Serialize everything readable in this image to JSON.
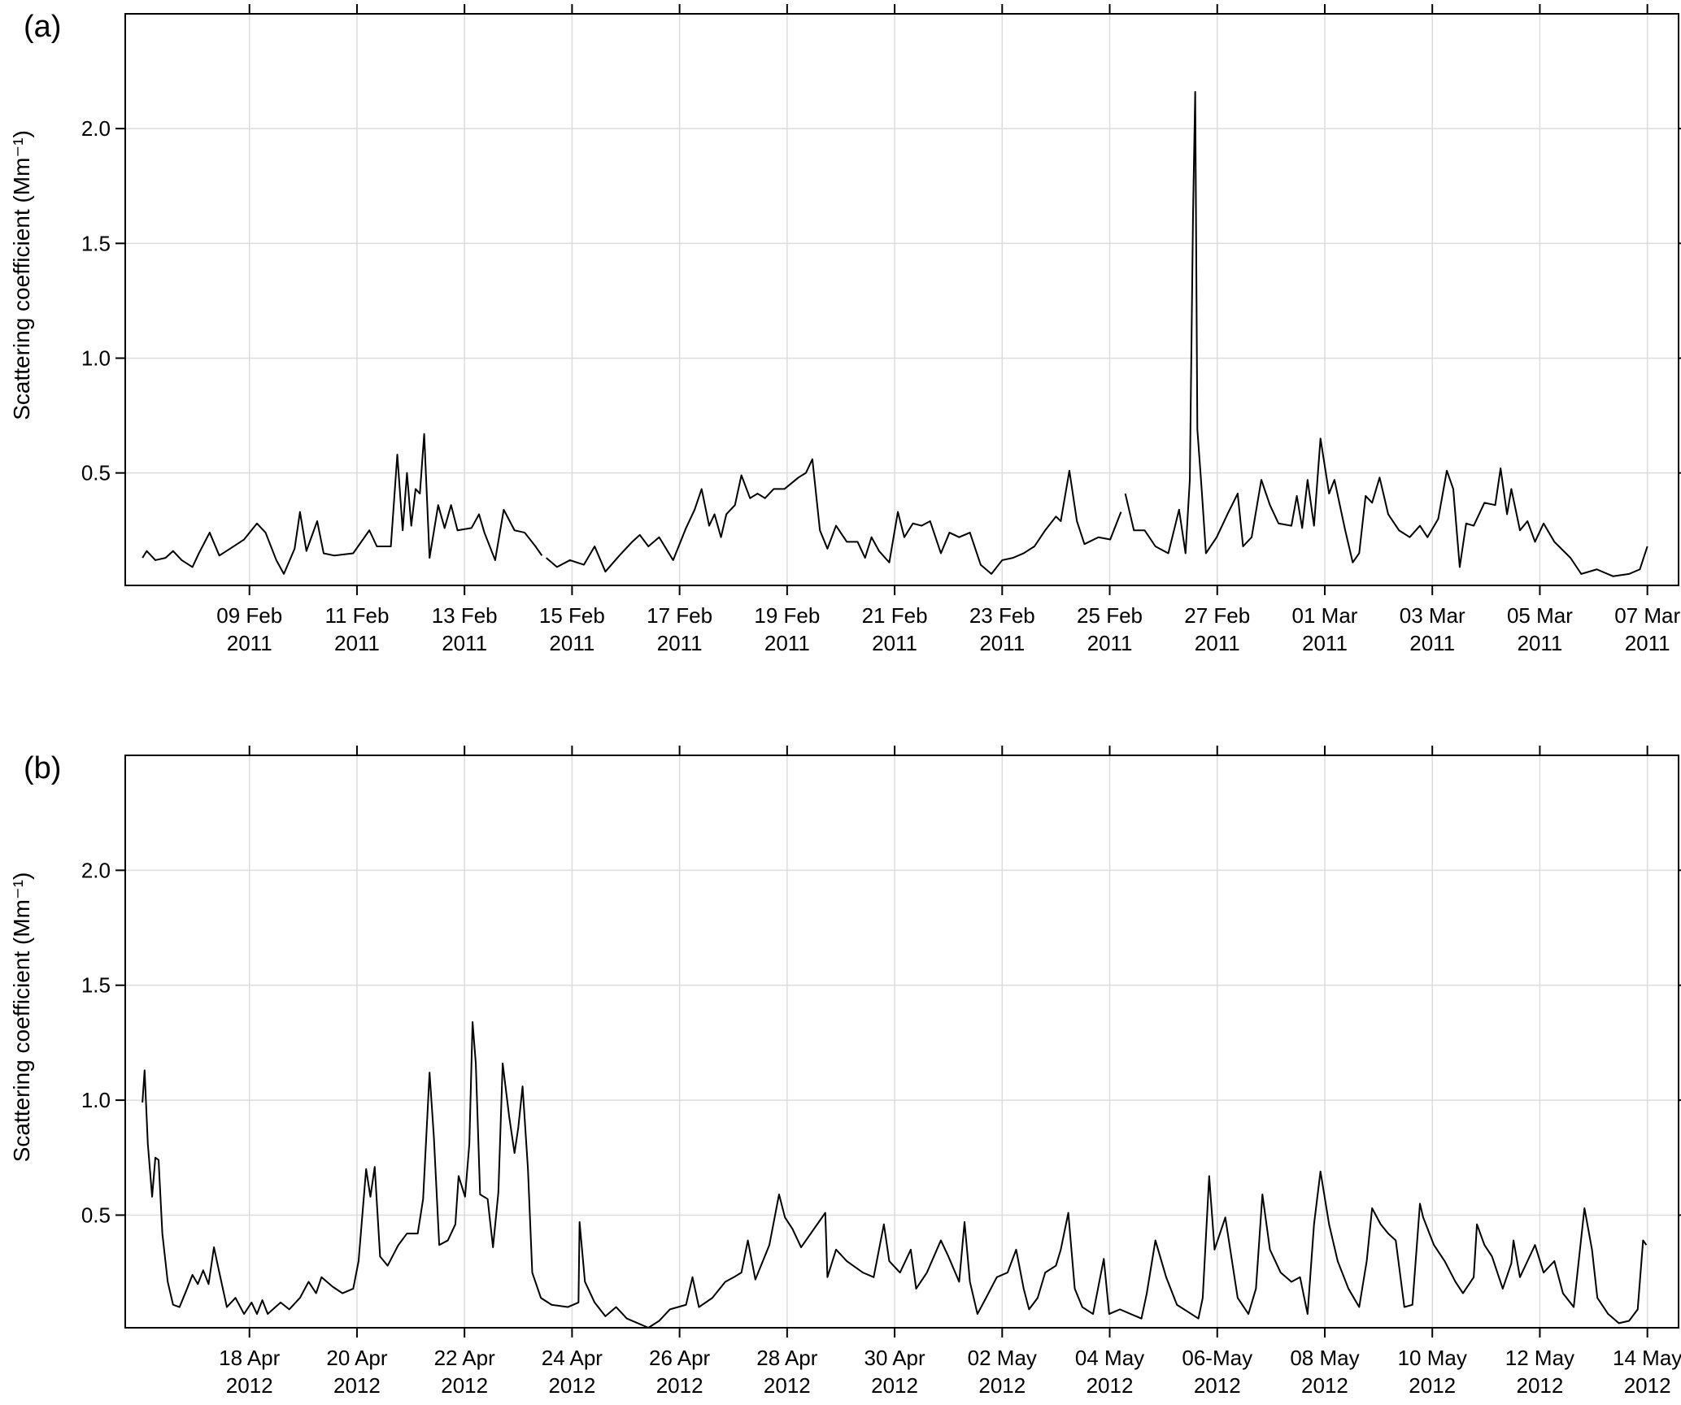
{
  "chart_data": [
    {
      "type": "line",
      "panel_label": "(a)",
      "ylabel": "Scattering coefficient (Mm⁻¹)",
      "xlim": [
        6.69,
        35.58
      ],
      "ylim": [
        0.01,
        2.5
      ],
      "grid": true,
      "xticks": [
        {
          "value": 9,
          "label": "09 Feb\n2011"
        },
        {
          "value": 11,
          "label": "11 Feb\n2011"
        },
        {
          "value": 13,
          "label": "13 Feb\n2011"
        },
        {
          "value": 15,
          "label": "15 Feb\n2011"
        },
        {
          "value": 17,
          "label": "17 Feb\n2011"
        },
        {
          "value": 19,
          "label": "19 Feb\n2011"
        },
        {
          "value": 21,
          "label": "21 Feb\n2011"
        },
        {
          "value": 23,
          "label": "23 Feb\n2011"
        },
        {
          "value": 25,
          "label": "25 Feb\n2011"
        },
        {
          "value": 27,
          "label": "27 Feb\n2011"
        },
        {
          "value": 29,
          "label": "01 Mar\n2011"
        },
        {
          "value": 31,
          "label": "03 Mar\n2011"
        },
        {
          "value": 33,
          "label": "05 Mar\n2011"
        },
        {
          "value": 35,
          "label": "07 Mar\n2011"
        }
      ],
      "yticks": [
        0.5,
        {
          "value": 1,
          "label": "1.0"
        },
        1.5,
        {
          "value": 2,
          "label": "2.0"
        }
      ],
      "series": [
        {
          "color": "#000000",
          "x": [
            7.01,
            7.09,
            7.25,
            7.44,
            7.58,
            7.74,
            7.94,
            8.06,
            8.26,
            8.44,
            8.64,
            8.9,
            9.14,
            9.3,
            9.5,
            9.64,
            9.84,
            9.94,
            10.06,
            10.26,
            10.38,
            10.58,
            10.93,
            11.23,
            11.37,
            11.63,
            11.75,
            11.85,
            11.93,
            12.01,
            12.09,
            12.17,
            12.25,
            12.35,
            12.51,
            12.63,
            12.75,
            12.87,
            13.13,
            13.27,
            13.37,
            13.57,
            13.73,
            13.93,
            14.12,
            14.32,
            14.44,
            14.48,
            14.52,
            14.72,
            14.96,
            15.22,
            15.42,
            15.62,
            15.88,
            16.12,
            16.26,
            16.42,
            16.62,
            16.88,
            17.12,
            17.28,
            17.41,
            17.55,
            17.65,
            17.77,
            17.87,
            18.03,
            18.15,
            18.31,
            18.45,
            18.59,
            18.75,
            18.95,
            19.21,
            19.35,
            19.47,
            19.61,
            19.75,
            19.91,
            20.11,
            20.31,
            20.45,
            20.57,
            20.71,
            20.9,
            21.06,
            21.18,
            21.34,
            21.5,
            21.66,
            21.86,
            22.02,
            22.2,
            22.4,
            22.6,
            22.8,
            23.0,
            23.2,
            23.4,
            23.6,
            23.8,
            24.0,
            24.09,
            24.25,
            24.39,
            24.53,
            24.79,
            25.01,
            25.21,
            25.25,
            25.29,
            25.45,
            25.65,
            25.85,
            26.09,
            26.29,
            26.41,
            26.49,
            26.55,
            26.59,
            26.63,
            26.71,
            26.79,
            26.99,
            27.19,
            27.38,
            27.48,
            27.64,
            27.82,
            27.98,
            28.14,
            28.38,
            28.48,
            28.58,
            28.68,
            28.8,
            28.92,
            29.08,
            29.18,
            29.38,
            29.52,
            29.64,
            29.76,
            29.88,
            30.02,
            30.18,
            30.38,
            30.58,
            30.77,
            30.91,
            31.11,
            31.27,
            31.39,
            31.51,
            31.63,
            31.77,
            31.97,
            32.17,
            32.27,
            32.39,
            32.47,
            32.63,
            32.77,
            32.91,
            33.07,
            33.27,
            33.57,
            33.77,
            34.06,
            34.36,
            34.66,
            34.86,
            35.0
          ],
          "values": [
            0.13,
            0.16,
            0.12,
            0.13,
            0.16,
            0.12,
            0.09,
            0.15,
            0.24,
            0.14,
            0.17,
            0.21,
            0.28,
            0.24,
            0.12,
            0.06,
            0.17,
            0.33,
            0.16,
            0.29,
            0.15,
            0.14,
            0.15,
            0.25,
            0.18,
            0.18,
            0.58,
            0.25,
            0.5,
            0.27,
            0.43,
            0.41,
            0.67,
            0.13,
            0.36,
            0.26,
            0.36,
            0.25,
            0.26,
            0.32,
            0.24,
            0.12,
            0.34,
            0.25,
            0.24,
            0.18,
            0.14,
            null,
            0.13,
            0.09,
            0.12,
            0.1,
            0.18,
            0.07,
            0.14,
            0.2,
            0.23,
            0.18,
            0.22,
            0.12,
            0.26,
            0.34,
            0.43,
            0.27,
            0.32,
            0.22,
            0.32,
            0.36,
            0.49,
            0.39,
            0.41,
            0.39,
            0.43,
            0.43,
            0.48,
            0.5,
            0.56,
            0.25,
            0.17,
            0.27,
            0.2,
            0.2,
            0.13,
            0.22,
            0.16,
            0.11,
            0.33,
            0.22,
            0.28,
            0.27,
            0.29,
            0.15,
            0.24,
            0.22,
            0.24,
            0.1,
            0.06,
            0.12,
            0.13,
            0.15,
            0.18,
            0.25,
            0.31,
            0.29,
            0.51,
            0.29,
            0.19,
            0.22,
            0.21,
            0.33,
            null,
            0.41,
            0.25,
            0.25,
            0.18,
            0.15,
            0.34,
            0.15,
            0.47,
            1.63,
            2.16,
            0.69,
            0.43,
            0.15,
            0.22,
            0.32,
            0.41,
            0.18,
            0.22,
            0.47,
            0.36,
            0.28,
            0.27,
            0.4,
            0.26,
            0.47,
            0.27,
            0.65,
            0.41,
            0.47,
            0.25,
            0.11,
            0.15,
            0.4,
            0.37,
            0.48,
            0.32,
            0.25,
            0.22,
            0.27,
            0.22,
            0.3,
            0.51,
            0.43,
            0.09,
            0.28,
            0.27,
            0.37,
            0.36,
            0.52,
            0.32,
            0.43,
            0.25,
            0.29,
            0.2,
            0.28,
            0.2,
            0.13,
            0.06,
            0.08,
            0.05,
            0.06,
            0.08,
            0.18
          ]
        }
      ]
    },
    {
      "type": "line",
      "panel_label": "(b)",
      "ylabel": "Scattering coefficient (Mm⁻¹)",
      "xlim": [
        15.69,
        44.58
      ],
      "ylim": [
        0.01,
        2.5
      ],
      "grid": true,
      "xticks": [
        {
          "value": 18,
          "label": "18 Apr\n2012"
        },
        {
          "value": 20,
          "label": "20 Apr\n2012"
        },
        {
          "value": 22,
          "label": "22 Apr\n2012"
        },
        {
          "value": 24,
          "label": "24 Apr\n2012"
        },
        {
          "value": 26,
          "label": "26 Apr\n2012"
        },
        {
          "value": 28,
          "label": "28 Apr\n2012"
        },
        {
          "value": 30,
          "label": "30 Apr\n2012"
        },
        {
          "value": 32,
          "label": "02 May\n2012"
        },
        {
          "value": 34,
          "label": "04 May\n2012"
        },
        {
          "value": 36,
          "label": "06-May\n2012"
        },
        {
          "value": 38,
          "label": "08 May\n2012"
        },
        {
          "value": 40,
          "label": "10 May\n2012"
        },
        {
          "value": 42,
          "label": "12 May\n2012"
        },
        {
          "value": 44,
          "label": "14 May\n2012"
        }
      ],
      "yticks": [
        0.5,
        {
          "value": 1,
          "label": "1.0"
        },
        1.5,
        {
          "value": 2,
          "label": "2.0"
        }
      ],
      "series": [
        {
          "color": "#000000",
          "x": [
            16.01,
            16.05,
            16.11,
            16.19,
            16.25,
            16.31,
            16.38,
            16.48,
            16.58,
            16.7,
            16.84,
            16.94,
            17.04,
            17.14,
            17.24,
            17.34,
            17.44,
            17.58,
            17.74,
            17.9,
            18.04,
            18.14,
            18.24,
            18.34,
            18.58,
            18.74,
            18.94,
            19.1,
            19.24,
            19.34,
            19.54,
            19.73,
            19.93,
            20.03,
            20.17,
            20.25,
            20.33,
            20.43,
            20.57,
            20.77,
            20.93,
            21.13,
            21.23,
            21.35,
            21.43,
            21.53,
            21.69,
            21.83,
            21.89,
            22.01,
            22.09,
            22.15,
            22.21,
            22.29,
            22.43,
            22.53,
            22.63,
            22.71,
            22.83,
            22.93,
            23.0,
            23.08,
            23.18,
            23.26,
            23.42,
            23.62,
            23.92,
            24.12,
            24.14,
            24.24,
            24.42,
            24.62,
            24.82,
            25.02,
            25.22,
            25.42,
            25.62,
            25.82,
            26.12,
            26.24,
            26.36,
            26.61,
            26.85,
            27.01,
            27.15,
            27.27,
            27.41,
            27.67,
            27.85,
            27.96,
            28.1,
            28.26,
            28.71,
            28.75,
            28.91,
            29.11,
            29.41,
            29.61,
            29.8,
            29.9,
            30.1,
            30.3,
            30.4,
            30.6,
            30.86,
            31.0,
            31.2,
            31.3,
            31.4,
            31.54,
            31.7,
            31.9,
            32.1,
            32.26,
            32.4,
            32.5,
            32.66,
            32.8,
            33.0,
            33.09,
            33.23,
            33.35,
            33.49,
            33.69,
            33.89,
            33.99,
            34.19,
            34.39,
            34.59,
            34.69,
            34.85,
            35.05,
            35.25,
            35.45,
            35.65,
            35.73,
            35.85,
            35.95,
            36.15,
            36.38,
            36.58,
            36.72,
            36.84,
            36.98,
            37.18,
            37.38,
            37.54,
            37.68,
            37.8,
            37.92,
            38.08,
            38.24,
            38.44,
            38.64,
            38.78,
            38.88,
            39.04,
            39.18,
            39.32,
            39.48,
            39.63,
            39.77,
            39.83,
            40.03,
            40.23,
            40.43,
            40.57,
            40.77,
            40.83,
            40.97,
            41.11,
            41.31,
            41.47,
            41.51,
            41.63,
            41.77,
            41.91,
            42.07,
            42.27,
            42.43,
            42.63,
            42.83,
            42.97,
            43.07,
            43.27,
            43.47,
            43.66,
            43.82,
            43.92,
            43.98
          ],
          "values": [
            0.99,
            1.13,
            0.81,
            0.58,
            0.75,
            0.74,
            0.42,
            0.21,
            0.11,
            0.1,
            0.18,
            0.24,
            0.2,
            0.26,
            0.2,
            0.36,
            0.25,
            0.1,
            0.14,
            0.07,
            0.12,
            0.07,
            0.13,
            0.07,
            0.12,
            0.09,
            0.14,
            0.21,
            0.16,
            0.23,
            0.19,
            0.16,
            0.18,
            0.3,
            0.7,
            0.58,
            0.71,
            0.32,
            0.28,
            0.37,
            0.42,
            0.42,
            0.57,
            1.12,
            0.84,
            0.37,
            0.39,
            0.46,
            0.67,
            0.58,
            0.81,
            1.34,
            1.16,
            0.59,
            0.57,
            0.36,
            0.6,
            1.16,
            0.93,
            0.77,
            0.88,
            1.06,
            0.7,
            0.25,
            0.14,
            0.11,
            0.1,
            0.12,
            0.47,
            0.21,
            0.12,
            0.06,
            0.1,
            0.05,
            0.03,
            0.01,
            0.04,
            0.09,
            0.11,
            0.23,
            0.1,
            0.14,
            0.21,
            0.23,
            0.25,
            0.39,
            0.22,
            0.37,
            0.59,
            0.49,
            0.44,
            0.36,
            0.51,
            0.23,
            0.35,
            0.3,
            0.25,
            0.23,
            0.46,
            0.3,
            0.25,
            0.35,
            0.18,
            0.25,
            0.39,
            0.32,
            0.21,
            0.47,
            0.21,
            0.07,
            0.14,
            0.23,
            0.25,
            0.35,
            0.18,
            0.09,
            0.14,
            0.25,
            0.28,
            0.35,
            0.51,
            0.18,
            0.1,
            0.07,
            0.31,
            0.07,
            0.09,
            0.07,
            0.05,
            0.16,
            0.39,
            0.23,
            0.11,
            0.08,
            0.05,
            0.14,
            0.67,
            0.35,
            0.49,
            0.14,
            0.07,
            0.18,
            0.59,
            0.35,
            0.25,
            0.21,
            0.23,
            0.07,
            0.46,
            0.69,
            0.46,
            0.3,
            0.18,
            0.1,
            0.3,
            0.53,
            0.46,
            0.42,
            0.39,
            0.1,
            0.11,
            0.55,
            0.49,
            0.37,
            0.3,
            0.21,
            0.16,
            0.23,
            0.46,
            0.37,
            0.32,
            0.18,
            0.29,
            0.39,
            0.23,
            0.3,
            0.37,
            0.25,
            0.3,
            0.16,
            0.1,
            0.53,
            0.35,
            0.14,
            0.07,
            0.03,
            0.04,
            0.09,
            0.39,
            0.37
          ]
        }
      ]
    }
  ]
}
